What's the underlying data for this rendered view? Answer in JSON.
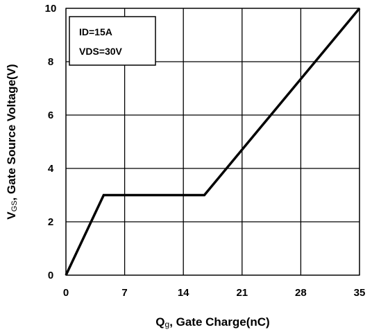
{
  "chart_data": {
    "type": "line",
    "xlabel": {
      "main": "Q",
      "sub": "g",
      "rest": ", Gate Charge(nC)"
    },
    "ylabel": {
      "main": "V",
      "sub": "GS",
      "rest": ", Gate Source Voltage(V)"
    },
    "xlim": [
      0,
      35
    ],
    "ylim": [
      0,
      10
    ],
    "xticks": [
      0,
      7,
      14,
      21,
      28,
      35
    ],
    "yticks": [
      0,
      2,
      4,
      6,
      8,
      10
    ],
    "grid": true,
    "series": [
      {
        "x": [
          0,
          4.5,
          16.5,
          35
        ],
        "y": [
          0,
          3,
          3,
          10
        ]
      }
    ],
    "annotation": {
      "lines": [
        "ID=15A",
        "VDS=30V"
      ],
      "placement": "top-left"
    },
    "colors": {
      "line": "#000000",
      "grid": "#000000",
      "background": "#ffffff"
    }
  }
}
